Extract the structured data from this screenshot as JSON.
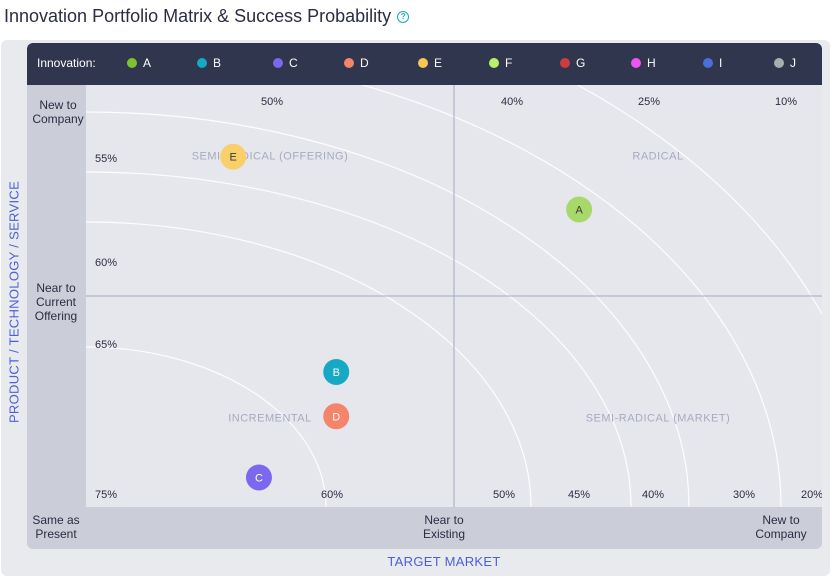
{
  "title": "Innovation Portfolio Matrix & Success Probability",
  "help_icon": "question-circle-icon",
  "legend": {
    "label": "Innovation:",
    "items": [
      {
        "name": "A",
        "color": "#7cc42e"
      },
      {
        "name": "B",
        "color": "#17a8c4"
      },
      {
        "name": "C",
        "color": "#7b68ee"
      },
      {
        "name": "D",
        "color": "#f4846a"
      },
      {
        "name": "E",
        "color": "#f9c74f"
      },
      {
        "name": "F",
        "color": "#b8f06a"
      },
      {
        "name": "G",
        "color": "#cc3e3e"
      },
      {
        "name": "H",
        "color": "#ee55ee"
      },
      {
        "name": "I",
        "color": "#4a6fd8"
      },
      {
        "name": "J",
        "color": "#a3b1ad"
      }
    ]
  },
  "y_axis": {
    "title": "PRODUCT / TECHNOLOGY / SERVICE",
    "labels": [
      "New to Company",
      "Near to Current Offering",
      "Same as Present"
    ]
  },
  "x_axis": {
    "title": "TARGET MARKET",
    "labels": [
      "Near to Existing",
      "New to Company"
    ]
  },
  "chart_data": {
    "type": "scatter",
    "x_range": [
      0,
      2
    ],
    "y_range": [
      0,
      2
    ],
    "quadrants": [
      {
        "label": "SEMI-RADICAL (OFFERING)",
        "x": 0.5,
        "y": 1.5
      },
      {
        "label": "RADICAL",
        "x": 1.5,
        "y": 1.5
      },
      {
        "label": "INCREMENTAL",
        "x": 0.5,
        "y": 0.5
      },
      {
        "label": "SEMI-RADICAL (MARKET)",
        "x": 1.5,
        "y": 0.5
      }
    ],
    "points": [
      {
        "name": "A",
        "x": 1.34,
        "y": 1.41,
        "color": "#a6d86a"
      },
      {
        "name": "B",
        "x": 0.68,
        "y": 0.64,
        "color": "#17a8c4"
      },
      {
        "name": "C",
        "x": 0.47,
        "y": 0.14,
        "color": "#7b68ee"
      },
      {
        "name": "D",
        "x": 0.68,
        "y": 0.43,
        "color": "#f4846a"
      },
      {
        "name": "E",
        "x": 0.4,
        "y": 1.66,
        "color": "#f9cf6a"
      }
    ],
    "probability_contours": [
      {
        "top": "50%",
        "left": "",
        "bottom": "50%"
      },
      {
        "top": "40%",
        "left": "55%",
        "bottom": "45%"
      },
      {
        "top": "25%",
        "left": "60%",
        "bottom": "40%"
      },
      {
        "top": "10%",
        "left": "65%",
        "bottom": "30%"
      },
      {
        "top": "",
        "left": "75%",
        "bottom": "20%"
      },
      {
        "top": "",
        "left": "",
        "bottom": "60%"
      }
    ]
  }
}
